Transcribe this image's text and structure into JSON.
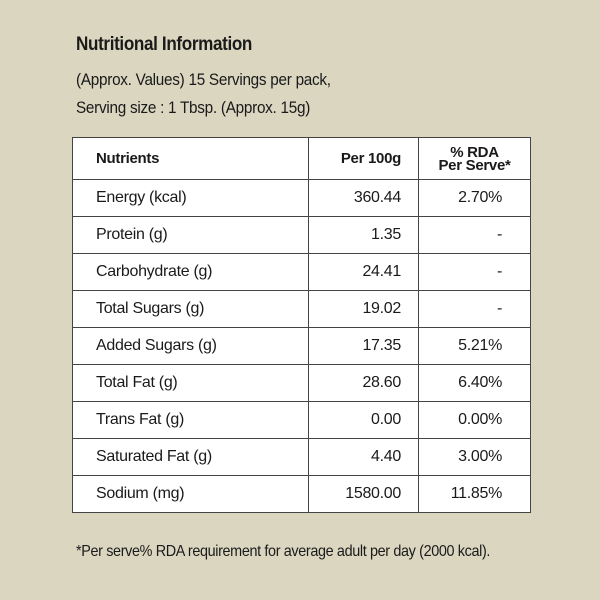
{
  "title": "Nutritional Information",
  "subtitle_line1": "(Approx. Values) 15 Servings per pack,",
  "subtitle_line2": "Serving size : 1 Tbsp. (Approx. 15g)",
  "table": {
    "headers": {
      "nutrients": "Nutrients",
      "per100g": "Per 100g",
      "rda_line1": "% RDA",
      "rda_line2": "Per Serve*"
    },
    "rows": [
      {
        "name": "Energy (kcal)",
        "per100g": "360.44",
        "rda": "2.70%"
      },
      {
        "name": "Protein (g)",
        "per100g": "1.35",
        "rda": "-"
      },
      {
        "name": "Carbohydrate (g)",
        "per100g": "24.41",
        "rda": "-"
      },
      {
        "name": "Total Sugars (g)",
        "per100g": "19.02",
        "rda": "-"
      },
      {
        "name": "Added Sugars (g)",
        "per100g": "17.35",
        "rda": "5.21%"
      },
      {
        "name": "Total Fat (g)",
        "per100g": "28.60",
        "rda": "6.40%"
      },
      {
        "name": "Trans Fat (g)",
        "per100g": "0.00",
        "rda": "0.00%"
      },
      {
        "name": "Saturated Fat (g)",
        "per100g": "4.40",
        "rda": "3.00%"
      },
      {
        "name": "Sodium (mg)",
        "per100g": "1580.00",
        "rda": "11.85%"
      }
    ]
  },
  "footnote": "*Per serve% RDA requirement for average adult per day (2000 kcal).",
  "colors": {
    "background": "#dad6c0",
    "table_bg": "#ffffff",
    "text": "#1a1a1a"
  }
}
